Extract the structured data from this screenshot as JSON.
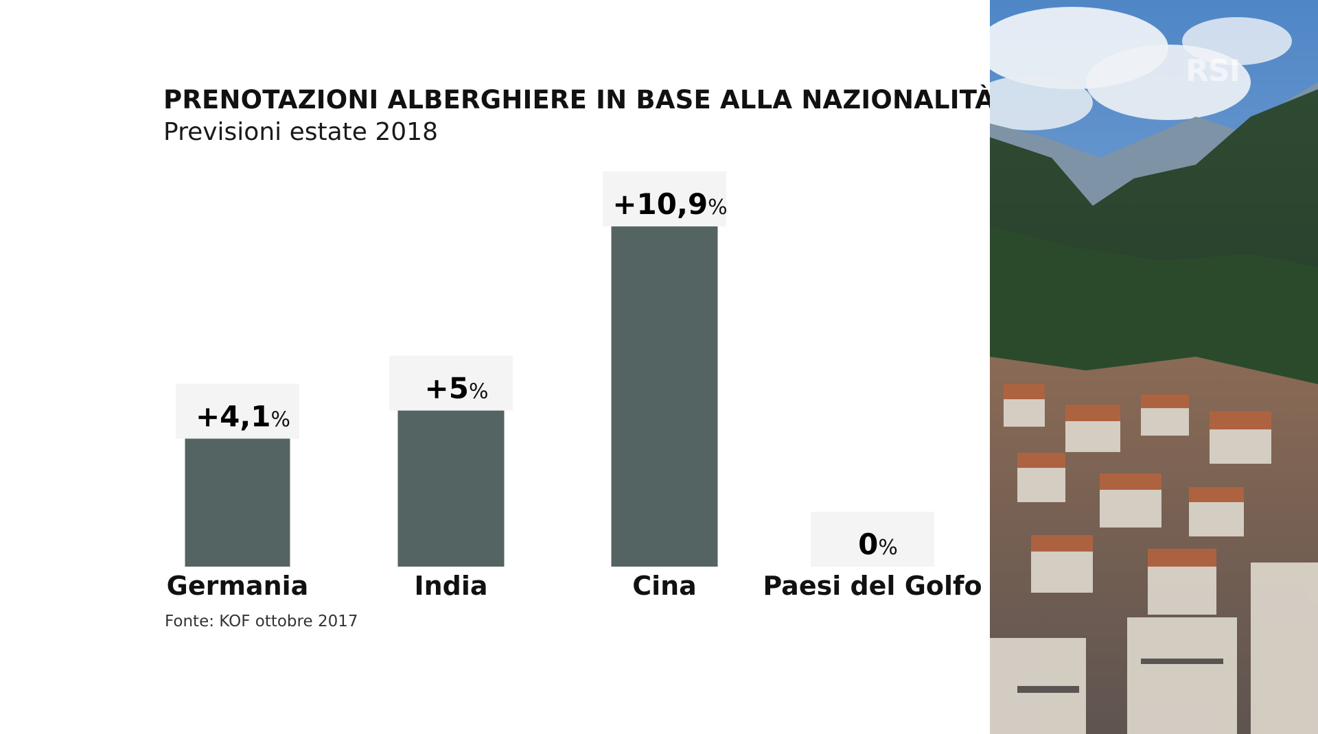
{
  "chart_data": {
    "type": "bar",
    "title": "PRENOTAZIONI ALBERGHIERE IN BASE ALLA NAZIONALITÀ",
    "subtitle": "Previsioni estate 2018",
    "categories": [
      "Germania",
      "India",
      "Cina",
      "Paesi del Golfo"
    ],
    "values": [
      4.1,
      5,
      10.9,
      0
    ],
    "value_labels": [
      "+4,1",
      "+5",
      "+10,9",
      "0"
    ],
    "unit": "%",
    "source": "Fonte: KOF ottobre 2017",
    "bar_color": "#536462",
    "grid": false,
    "legend": false
  },
  "logo": {
    "text": "RSI"
  },
  "colors": {
    "bar": "#536462",
    "label_backdrop": "#f4f4f4"
  }
}
